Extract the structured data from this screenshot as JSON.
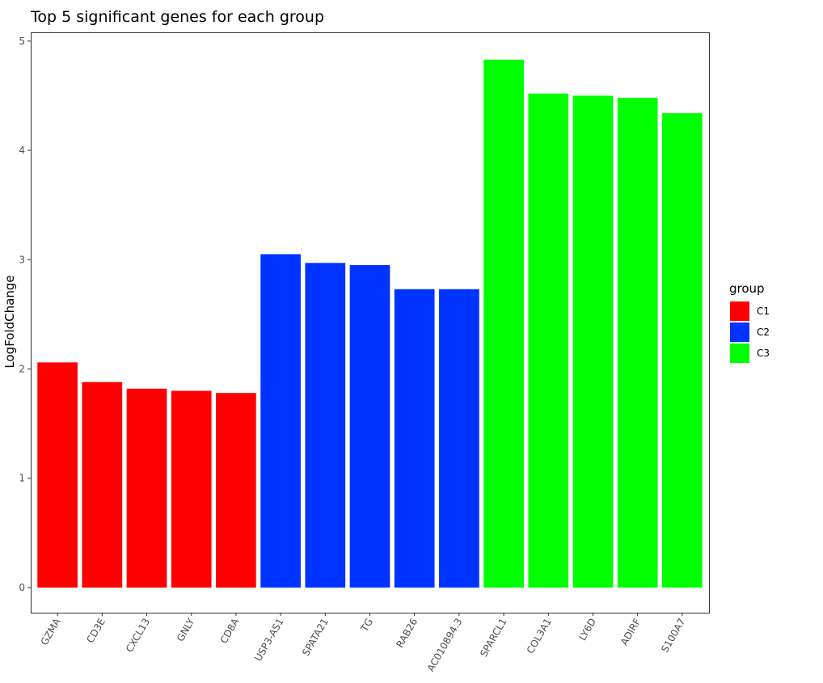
{
  "chart_data": {
    "type": "bar",
    "title": "Top 5 significant genes for each group",
    "xlabel": "",
    "ylabel": "LogFoldChange",
    "ylim": [
      -0.23,
      5.08
    ],
    "yticks": [
      0,
      1,
      2,
      3,
      4,
      5
    ],
    "grid": false,
    "legend": {
      "title": "group",
      "placement": "right",
      "entries": [
        {
          "label": "C1",
          "color": "#FF0000"
        },
        {
          "label": "C2",
          "color": "#0033FF"
        },
        {
          "label": "C3",
          "color": "#00FF00"
        }
      ]
    },
    "categories": [
      "GZMA",
      "CD3E",
      "CXCL13",
      "GNLY",
      "CD8A",
      "USP3-AS1",
      "SPATA21",
      "TG",
      "RAB26",
      "AC010894.3",
      "SPARCL1",
      "COL3A1",
      "LY6D",
      "ADIRF",
      "S100A7"
    ],
    "values": [
      2.06,
      1.88,
      1.82,
      1.8,
      1.78,
      3.05,
      2.97,
      2.95,
      2.73,
      2.73,
      4.83,
      4.52,
      4.5,
      4.48,
      4.34
    ],
    "groups": [
      "C1",
      "C1",
      "C1",
      "C1",
      "C1",
      "C2",
      "C2",
      "C2",
      "C2",
      "C2",
      "C3",
      "C3",
      "C3",
      "C3",
      "C3"
    ]
  }
}
